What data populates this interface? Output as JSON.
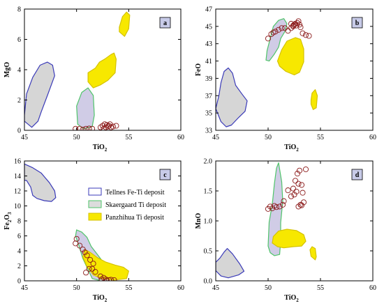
{
  "colors": {
    "tellnes_fill": "#d6d6d6",
    "tellnes_stroke": "#3a3ab8",
    "skaer_fill": "#d0cce6",
    "skaer_stroke": "#4fc46a",
    "panzhihua_fill": "#f7e800",
    "panzhihua_stroke": "#d4c200",
    "legend_skaer_fill": "#dcdcdc",
    "sample_stroke": "#8b1a1a",
    "label_box": "#c8cbe8"
  },
  "legend": {
    "tellnes": "Tellnes Fe-Ti deposit",
    "skaergaard": "Skaergaard Ti deposit",
    "panzhihua": "Panzhihua Ti deposit"
  },
  "chart_data": [
    {
      "type": "scatter",
      "panel": "a",
      "xlabel": "TiO",
      "xlabel_sub": "2",
      "ylabel": "MgO",
      "ylabel_sub": "",
      "xlim": [
        45,
        60
      ],
      "ylim": [
        0,
        8
      ],
      "xticks": [
        45,
        50,
        55,
        60
      ],
      "yticks": [
        0,
        2,
        4,
        6,
        8
      ],
      "fields": {
        "tellnes": [
          [
            45.0,
            1.0
          ],
          [
            45.2,
            2.4
          ],
          [
            45.8,
            3.5
          ],
          [
            46.5,
            4.3
          ],
          [
            47.2,
            4.5
          ],
          [
            47.7,
            4.3
          ],
          [
            47.9,
            3.6
          ],
          [
            47.2,
            2.3
          ],
          [
            46.6,
            1.2
          ],
          [
            46.3,
            0.6
          ],
          [
            45.7,
            0.2
          ],
          [
            45.0,
            0.6
          ]
        ],
        "skaergaard": [
          [
            50.0,
            1.6
          ],
          [
            50.5,
            2.5
          ],
          [
            51.1,
            2.8
          ],
          [
            51.6,
            2.3
          ],
          [
            51.7,
            1.0
          ],
          [
            51.5,
            0.25
          ],
          [
            50.7,
            0.1
          ],
          [
            50.1,
            0.4
          ]
        ],
        "panzhihua": [
          [
            [
              51.1,
              3.8
            ],
            [
              51.8,
              4.1
            ],
            [
              52.2,
              4.5
            ],
            [
              52.7,
              4.7
            ],
            [
              53.3,
              5.0
            ],
            [
              53.6,
              5.1
            ],
            [
              53.8,
              4.7
            ],
            [
              53.7,
              3.8
            ],
            [
              53.0,
              3.3
            ],
            [
              52.3,
              3.0
            ],
            [
              51.6,
              2.8
            ],
            [
              51.1,
              3.2
            ]
          ],
          [
            [
              54.1,
              6.8
            ],
            [
              54.4,
              7.5
            ],
            [
              54.8,
              7.8
            ],
            [
              55.1,
              7.6
            ],
            [
              55.0,
              6.7
            ],
            [
              54.6,
              6.2
            ],
            [
              54.1,
              6.5
            ]
          ]
        ]
      },
      "samples": [
        [
          49.9,
          0.1
        ],
        [
          50.3,
          0.1
        ],
        [
          50.6,
          0.05
        ],
        [
          50.9,
          0.1
        ],
        [
          51.2,
          0.12
        ],
        [
          51.5,
          0.1
        ],
        [
          52.3,
          0.2
        ],
        [
          52.5,
          0.3
        ],
        [
          52.7,
          0.4
        ],
        [
          52.8,
          0.2
        ],
        [
          52.9,
          0.35
        ],
        [
          53.0,
          0.25
        ],
        [
          53.1,
          0.3
        ],
        [
          53.3,
          0.2
        ],
        [
          53.5,
          0.25
        ],
        [
          53.8,
          0.3
        ],
        [
          52.6,
          0.1
        ],
        [
          53.2,
          0.4
        ]
      ]
    },
    {
      "type": "scatter",
      "panel": "b",
      "xlabel": "TiO",
      "xlabel_sub": "2",
      "ylabel": "FeO",
      "ylabel_sub": "",
      "xlim": [
        45,
        60
      ],
      "ylim": [
        33,
        47
      ],
      "xticks": [
        45,
        50,
        55,
        60
      ],
      "yticks": [
        33,
        35,
        37,
        39,
        41,
        43,
        45,
        47
      ],
      "fields": {
        "tellnes": [
          [
            45.0,
            35.5
          ],
          [
            45.3,
            37.0
          ],
          [
            45.5,
            38.5
          ],
          [
            45.8,
            39.8
          ],
          [
            46.2,
            40.2
          ],
          [
            46.6,
            39.6
          ],
          [
            46.9,
            38.2
          ],
          [
            47.5,
            37.2
          ],
          [
            48.0,
            36.4
          ],
          [
            47.8,
            35.2
          ],
          [
            47.2,
            34.5
          ],
          [
            46.5,
            33.6
          ],
          [
            46.0,
            33.4
          ],
          [
            45.5,
            34.0
          ]
        ],
        "skaergaard": [
          [
            49.9,
            42.2
          ],
          [
            50.2,
            43.6
          ],
          [
            50.5,
            45.0
          ],
          [
            51.0,
            45.7
          ],
          [
            51.5,
            45.9
          ],
          [
            51.8,
            45.3
          ],
          [
            51.6,
            44.4
          ],
          [
            51.2,
            43.6
          ],
          [
            51.0,
            42.6
          ],
          [
            50.6,
            41.8
          ],
          [
            50.1,
            41.0
          ],
          [
            49.8,
            41.1
          ]
        ],
        "panzhihua": [
          [
            [
              50.9,
              41.0
            ],
            [
              51.3,
              42.3
            ],
            [
              51.8,
              43.3
            ],
            [
              52.6,
              43.7
            ],
            [
              53.1,
              43.5
            ],
            [
              53.4,
              42.4
            ],
            [
              53.4,
              40.9
            ],
            [
              53.0,
              39.7
            ],
            [
              52.5,
              39.4
            ],
            [
              51.7,
              39.8
            ],
            [
              51.1,
              40.4
            ]
          ],
          [
            [
              54.1,
              36.5
            ],
            [
              54.2,
              37.3
            ],
            [
              54.5,
              37.7
            ],
            [
              54.7,
              37.0
            ],
            [
              54.6,
              35.6
            ],
            [
              54.3,
              35.4
            ],
            [
              54.1,
              36.0
            ]
          ]
        ]
      },
      "samples": [
        [
          50.0,
          43.6
        ],
        [
          50.3,
          44.1
        ],
        [
          50.5,
          44.3
        ],
        [
          50.7,
          44.4
        ],
        [
          51.0,
          44.6
        ],
        [
          51.3,
          44.8
        ],
        [
          51.6,
          44.8
        ],
        [
          51.9,
          44.5
        ],
        [
          52.2,
          44.8
        ],
        [
          52.4,
          45.0
        ],
        [
          52.5,
          45.2
        ],
        [
          52.6,
          45.3
        ],
        [
          52.7,
          45.1
        ],
        [
          52.8,
          45.4
        ],
        [
          52.9,
          45.6
        ],
        [
          53.0,
          45.2
        ],
        [
          53.1,
          44.9
        ],
        [
          53.3,
          44.2
        ],
        [
          53.6,
          44.0
        ],
        [
          53.9,
          43.9
        ],
        [
          52.4,
          45.1
        ],
        [
          52.2,
          45.3
        ]
      ]
    },
    {
      "type": "scatter",
      "panel": "c",
      "xlabel": "TiO",
      "xlabel_sub": "2",
      "ylabel": "Fe",
      "ylabel_sub": "2O3",
      "xlim": [
        45,
        60
      ],
      "ylim": [
        0,
        16
      ],
      "xticks": [
        45,
        50,
        55,
        60
      ],
      "yticks": [
        0,
        2,
        4,
        6,
        8,
        10,
        12,
        14,
        16
      ],
      "fields": {
        "tellnes": [
          [
            45.0,
            15.6
          ],
          [
            45.8,
            15.1
          ],
          [
            46.6,
            14.4
          ],
          [
            47.4,
            13.1
          ],
          [
            47.9,
            12.0
          ],
          [
            48.0,
            11.1
          ],
          [
            47.6,
            10.6
          ],
          [
            46.9,
            10.7
          ],
          [
            46.2,
            11.0
          ],
          [
            45.8,
            11.4
          ],
          [
            45.6,
            12.5
          ],
          [
            45.2,
            13.4
          ],
          [
            45.0,
            13.4
          ]
        ],
        "skaergaard": [
          [
            50.0,
            6.8
          ],
          [
            50.5,
            6.5
          ],
          [
            51.0,
            5.8
          ],
          [
            51.4,
            4.6
          ],
          [
            51.9,
            3.7
          ],
          [
            52.5,
            2.6
          ],
          [
            52.8,
            1.4
          ],
          [
            52.6,
            0.4
          ],
          [
            52.1,
            0.1
          ],
          [
            51.5,
            0.3
          ],
          [
            51.1,
            1.5
          ],
          [
            50.6,
            3.0
          ],
          [
            50.2,
            4.8
          ],
          [
            49.9,
            6.0
          ]
        ],
        "panzhihua": [
          [
            [
              50.8,
              4.2
            ],
            [
              51.3,
              3.8
            ],
            [
              52.0,
              3.1
            ],
            [
              52.8,
              2.5
            ],
            [
              53.7,
              2.1
            ],
            [
              54.5,
              1.8
            ],
            [
              55.0,
              1.3
            ],
            [
              54.8,
              0.3
            ],
            [
              53.6,
              0.1
            ],
            [
              52.4,
              0.3
            ],
            [
              51.6,
              0.8
            ],
            [
              51.0,
              1.9
            ],
            [
              50.6,
              3.2
            ]
          ]
        ]
      },
      "samples": [
        [
          49.9,
          5.0
        ],
        [
          50.0,
          5.6
        ],
        [
          50.3,
          4.7
        ],
        [
          50.6,
          4.2
        ],
        [
          50.8,
          3.8
        ],
        [
          51.0,
          3.4
        ],
        [
          51.3,
          2.8
        ],
        [
          51.6,
          2.3
        ],
        [
          51.2,
          1.6
        ],
        [
          51.8,
          1.2
        ],
        [
          52.3,
          0.6
        ],
        [
          52.4,
          0.2
        ],
        [
          52.6,
          0.4
        ],
        [
          52.8,
          0.2
        ],
        [
          52.9,
          0.05
        ],
        [
          53.1,
          0.1
        ],
        [
          53.3,
          0.15
        ],
        [
          53.6,
          0.1
        ],
        [
          50.9,
          1.1
        ],
        [
          51.5,
          1.6
        ]
      ]
    },
    {
      "type": "scatter",
      "panel": "d",
      "xlabel": "TiO",
      "xlabel_sub": "2",
      "ylabel": "MnO",
      "ylabel_sub": "",
      "xlim": [
        45,
        60
      ],
      "ylim": [
        0.0,
        2.0
      ],
      "xticks": [
        45,
        50,
        55,
        60
      ],
      "yticks": [
        0.0,
        0.5,
        1.0,
        1.5,
        2.0
      ],
      "fields": {
        "tellnes": [
          [
            45.0,
            0.31
          ],
          [
            45.4,
            0.38
          ],
          [
            45.8,
            0.48
          ],
          [
            46.1,
            0.54
          ],
          [
            46.6,
            0.45
          ],
          [
            47.3,
            0.28
          ],
          [
            47.7,
            0.16
          ],
          [
            47.2,
            0.1
          ],
          [
            46.2,
            0.05
          ],
          [
            45.5,
            0.08
          ],
          [
            45.0,
            0.17
          ]
        ],
        "skaergaard": [
          [
            50.0,
            0.58
          ],
          [
            50.1,
            0.98
          ],
          [
            50.4,
            1.28
          ],
          [
            50.6,
            1.62
          ],
          [
            50.8,
            1.88
          ],
          [
            51.0,
            1.97
          ],
          [
            51.3,
            1.65
          ],
          [
            51.4,
            1.33
          ],
          [
            51.2,
            0.97
          ],
          [
            51.2,
            0.66
          ],
          [
            51.1,
            0.44
          ],
          [
            50.6,
            0.42
          ],
          [
            50.2,
            0.47
          ]
        ],
        "panzhihua": [
          [
            [
              50.5,
              0.74
            ],
            [
              51.0,
              0.83
            ],
            [
              51.8,
              0.86
            ],
            [
              52.7,
              0.84
            ],
            [
              53.4,
              0.77
            ],
            [
              53.6,
              0.66
            ],
            [
              53.2,
              0.58
            ],
            [
              52.4,
              0.57
            ],
            [
              51.5,
              0.55
            ],
            [
              50.9,
              0.57
            ],
            [
              50.4,
              0.63
            ]
          ],
          [
            [
              54.0,
              0.52
            ],
            [
              54.2,
              0.57
            ],
            [
              54.5,
              0.54
            ],
            [
              54.6,
              0.4
            ],
            [
              54.5,
              0.35
            ],
            [
              54.1,
              0.41
            ]
          ]
        ]
      },
      "samples": [
        [
          50.0,
          1.2
        ],
        [
          50.2,
          1.24
        ],
        [
          50.4,
          1.21
        ],
        [
          50.6,
          1.25
        ],
        [
          50.8,
          1.23
        ],
        [
          51.1,
          1.24
        ],
        [
          51.4,
          1.27
        ],
        [
          51.5,
          1.33
        ],
        [
          51.9,
          1.51
        ],
        [
          52.2,
          1.41
        ],
        [
          52.4,
          1.54
        ],
        [
          52.5,
          1.44
        ],
        [
          52.6,
          1.67
        ],
        [
          52.7,
          1.49
        ],
        [
          52.8,
          1.79
        ],
        [
          52.9,
          1.62
        ],
        [
          53.0,
          1.84
        ],
        [
          53.1,
          1.27
        ],
        [
          53.2,
          1.6
        ],
        [
          53.3,
          1.47
        ],
        [
          53.4,
          1.31
        ],
        [
          53.6,
          1.86
        ],
        [
          52.9,
          1.24
        ],
        [
          53.2,
          1.26
        ]
      ]
    }
  ]
}
